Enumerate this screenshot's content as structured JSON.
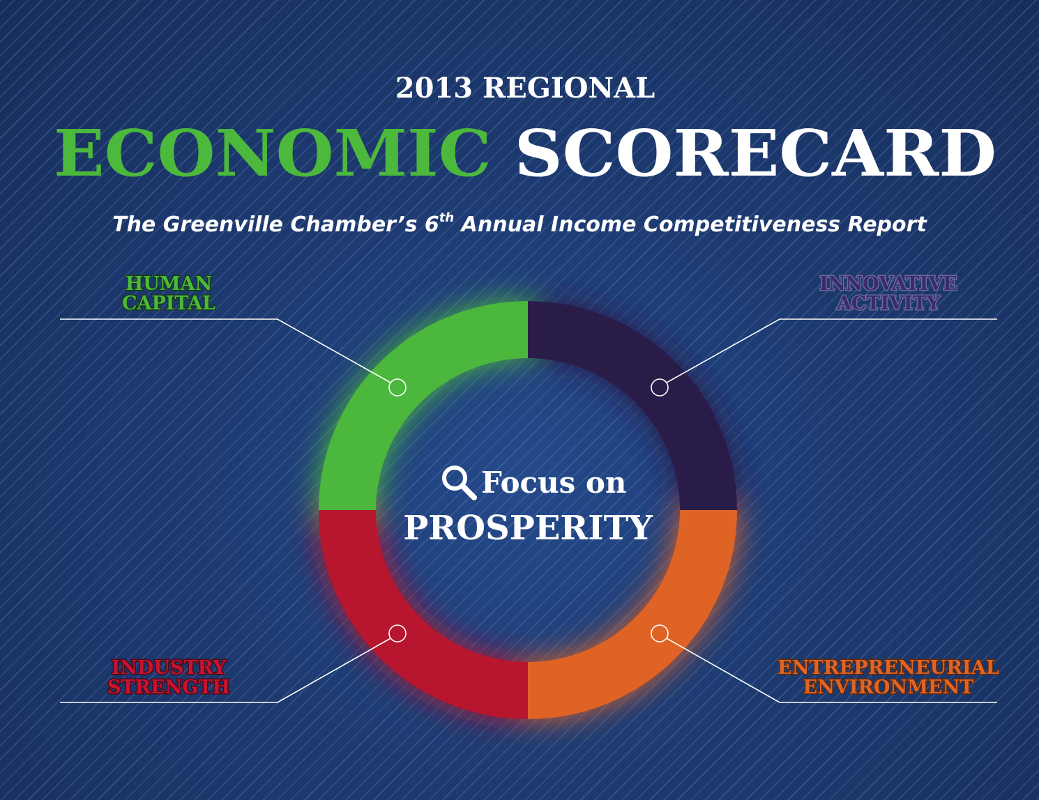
{
  "header": {
    "kicker": "2013 REGIONAL",
    "title_green": "ECONOMIC",
    "title_white": "SCORECARD",
    "subtitle": {
      "before": "The Greenville Chamber’s 6",
      "superscript": "th",
      "after": " Annual Income Competitiveness Report"
    }
  },
  "center": {
    "line1": "Focus on",
    "line2": "PROSPERITY"
  },
  "quadrants": [
    {
      "lines": [
        "HUMAN",
        "CAPITAL"
      ]
    },
    {
      "lines": [
        "INNOVATIVE",
        "ACTIVITY"
      ]
    },
    {
      "lines": [
        "INDUSTRY",
        "STRENGTH"
      ]
    },
    {
      "lines": [
        "ENTREPRENEURIAL",
        "ENVIRONMENT"
      ]
    }
  ]
}
